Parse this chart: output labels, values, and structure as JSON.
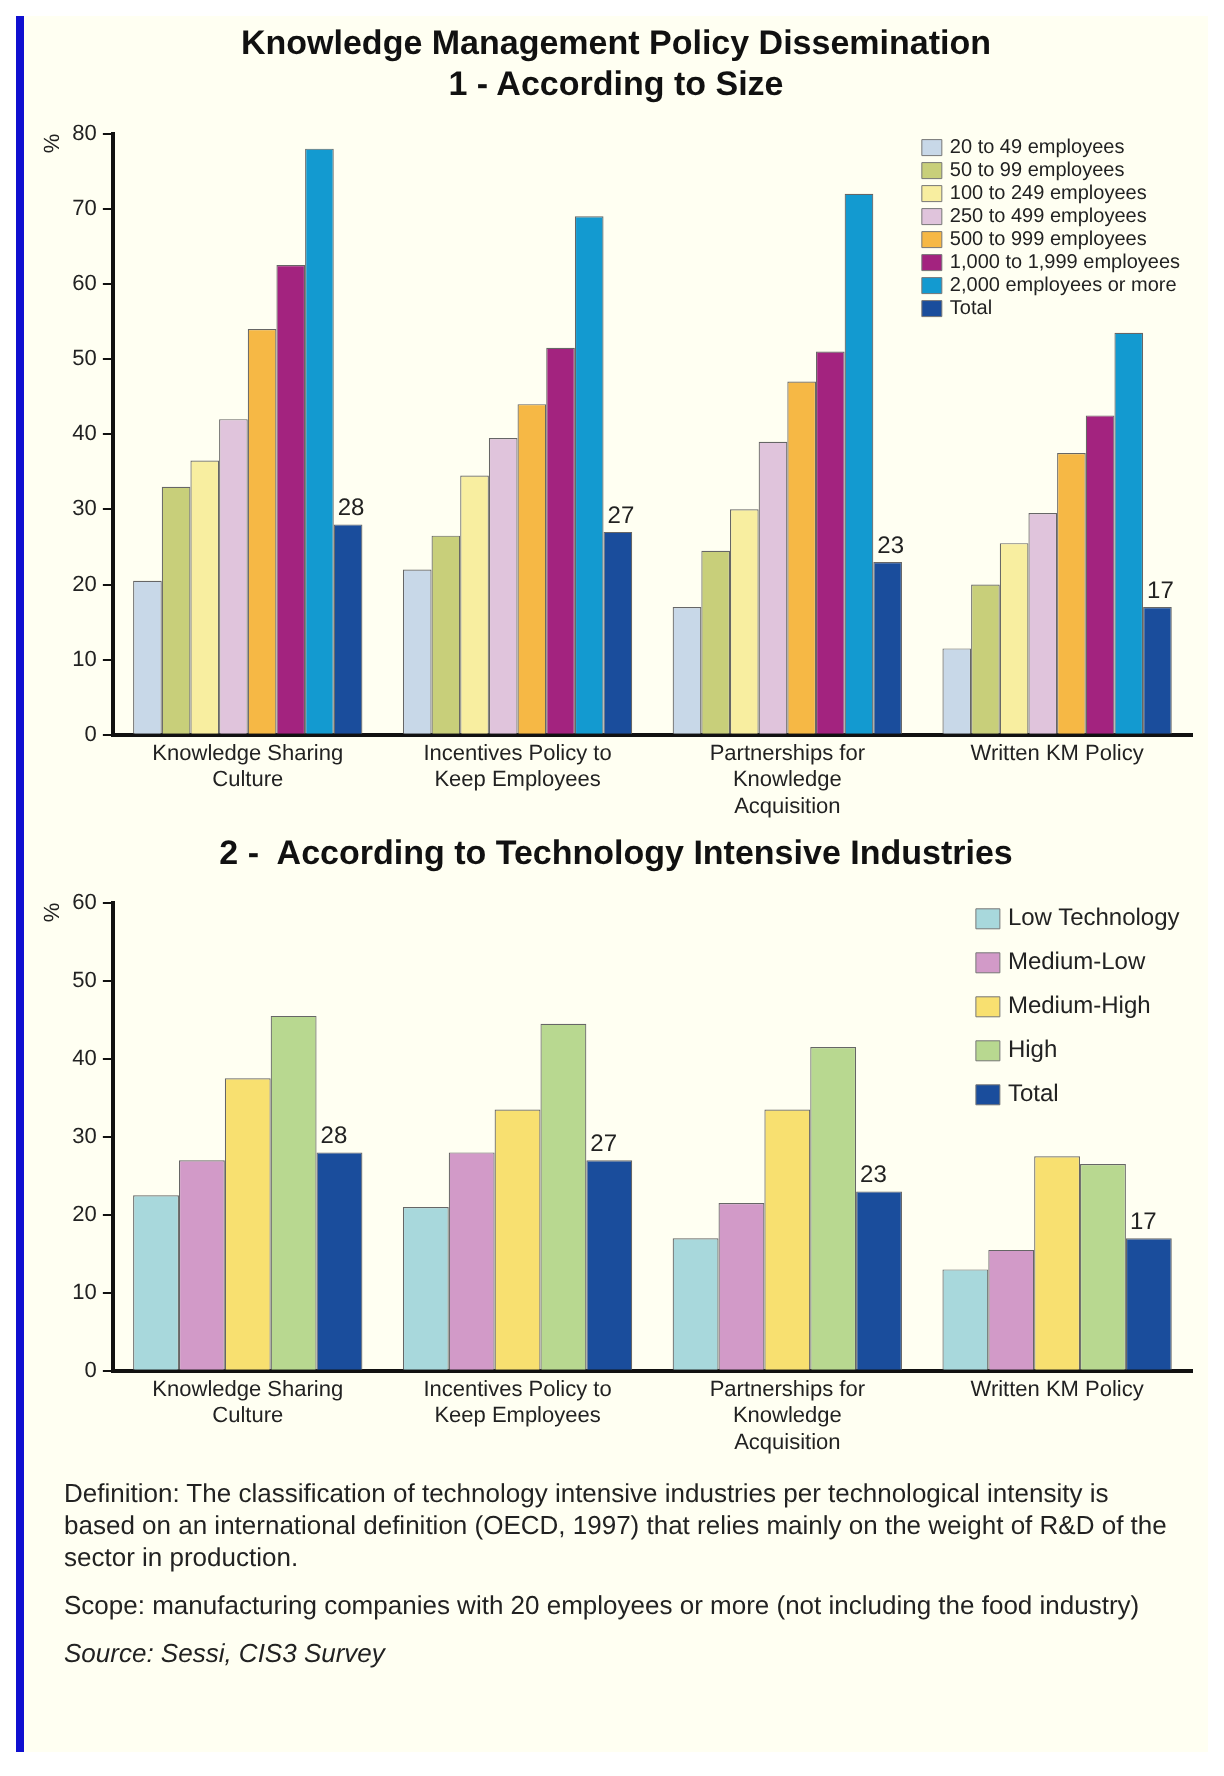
{
  "chart_data": [
    {
      "type": "bar",
      "title": "Knowledge Management Policy Dissemination",
      "subtitle": "1 - According to Size",
      "ylabel": "%",
      "categories": [
        "Knowledge Sharing Culture",
        "Incentives Policy to Keep Employees",
        "Partnerships for Knowledge Acquisition",
        "Written KM Policy"
      ],
      "series": [
        {
          "name": "20 to 49 employees",
          "color": "#c8d8e8",
          "values": [
            20.5,
            22,
            17,
            11.5
          ]
        },
        {
          "name": "50 to 99 employees",
          "color": "#c8cf7a",
          "values": [
            33,
            26.5,
            24.5,
            20
          ]
        },
        {
          "name": "100 to 249 employees",
          "color": "#f8eea0",
          "values": [
            36.5,
            34.5,
            30,
            25.5
          ]
        },
        {
          "name": "250 to 499 employees",
          "color": "#e0c4dc",
          "values": [
            42,
            39.5,
            39,
            29.5
          ]
        },
        {
          "name": "500 to 999 employees",
          "color": "#f6b845",
          "values": [
            54,
            44,
            47,
            37.5
          ]
        },
        {
          "name": "1,000 to 1,999 employees",
          "color": "#a3237f",
          "values": [
            62.5,
            51.5,
            51,
            42.5
          ]
        },
        {
          "name": "2,000 employees or more",
          "color": "#139ad0",
          "values": [
            78,
            69,
            72,
            53.5
          ]
        },
        {
          "name": "Total",
          "color": "#1a4d9c",
          "values": [
            28,
            27,
            23,
            17
          ],
          "value_labels": [
            "28",
            "27",
            "23",
            "17"
          ]
        }
      ],
      "ylim": [
        0,
        80
      ],
      "yticks": [
        0,
        10,
        20,
        30,
        40,
        50,
        60,
        70,
        80
      ],
      "grid": false,
      "legend": "top right"
    },
    {
      "type": "bar",
      "title": "2 -  According to Technology Intensive Industries",
      "ylabel": "%",
      "categories": [
        "Knowledge Sharing Culture",
        "Incentives Policy to Keep Employees",
        "Partnerships for Knowledge Acquisition",
        "Written KM Policy"
      ],
      "series": [
        {
          "name": "Low Technology",
          "color": "#a8d8dc",
          "values": [
            22.5,
            21,
            17,
            13
          ]
        },
        {
          "name": "Medium-Low",
          "color": "#d29ac8",
          "values": [
            27,
            28,
            21.5,
            15.5
          ]
        },
        {
          "name": "Medium-High",
          "color": "#f8e070",
          "values": [
            37.5,
            33.5,
            33.5,
            27.5
          ]
        },
        {
          "name": "High",
          "color": "#b8d890",
          "values": [
            45.5,
            44.5,
            41.5,
            26.5
          ]
        },
        {
          "name": "Total",
          "color": "#1a4d9c",
          "values": [
            28,
            27,
            23,
            17
          ],
          "value_labels": [
            "28",
            "27",
            "23",
            "17"
          ]
        }
      ],
      "ylim": [
        0,
        60
      ],
      "yticks": [
        0,
        10,
        20,
        30,
        40,
        50,
        60
      ],
      "grid": false,
      "legend": "top right",
      "annotations": [
        "Definition: The classification of technology  intensive industries per technological intensity is based on an international definition (OECD, 1997) that relies mainly on the weight of R&D of the sector in production.",
        "Scope: manufacturing companies with 20 employees or more (not including the food industry)",
        "Source: Sessi, CIS3 Survey"
      ]
    }
  ]
}
